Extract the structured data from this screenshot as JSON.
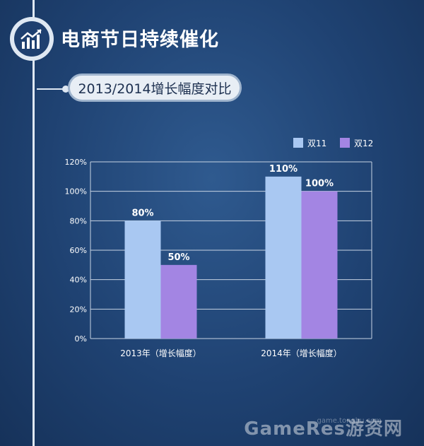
{
  "page": {
    "title": "电商节日持续催化",
    "subtitle": "2013/2014增长幅度对比"
  },
  "colors": {
    "series_1": "#a9c8f2",
    "series_2": "#a385e3",
    "grid": "#c7d3e3"
  },
  "icons": {
    "logo": "bar-chart-growth-icon"
  },
  "watermark": {
    "text": "GameRes游资网",
    "url": "game.tongbu.com"
  },
  "chart_data": {
    "type": "bar",
    "categories": [
      "2013年（增长幅度）",
      "2014年（增长幅度）"
    ],
    "series": [
      {
        "name": "双11",
        "values": [
          80,
          110
        ],
        "labels": [
          "80%",
          "110%"
        ]
      },
      {
        "name": "双12",
        "values": [
          50,
          100
        ],
        "labels": [
          "50%",
          "100%"
        ]
      }
    ],
    "ylim": [
      0,
      120
    ],
    "yticks": [
      "0%",
      "20%",
      "40%",
      "60%",
      "80%",
      "100%",
      "120%"
    ],
    "grid": true,
    "legend_position": "top-right"
  }
}
